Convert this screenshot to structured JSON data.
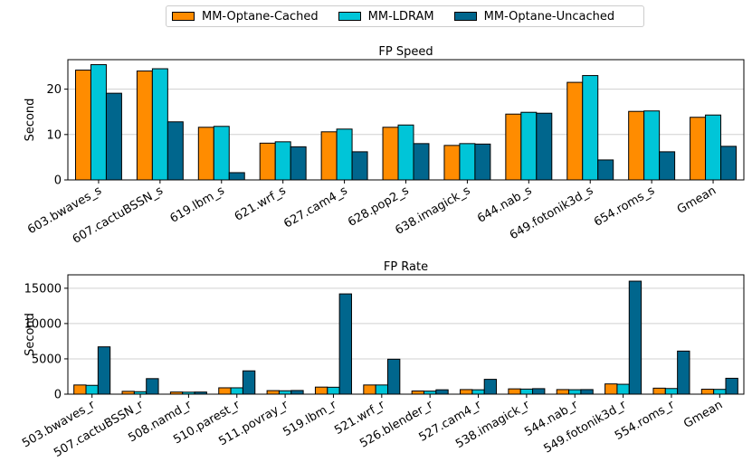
{
  "legend": [
    {
      "name": "MM-Optane-Cached",
      "color": "#ff8c00"
    },
    {
      "name": "MM-LDRAM",
      "color": "#00c5d8"
    },
    {
      "name": "MM-Optane-Uncached",
      "color": "#00668d"
    }
  ],
  "chart_data": [
    {
      "type": "bar",
      "title": "FP Speed",
      "xlabel": "",
      "ylabel": "Second",
      "ylim": [
        0,
        26.5
      ],
      "yticks": [
        0,
        10,
        20
      ],
      "grid": "horizontal",
      "categories": [
        "603.bwaves_s",
        "607.cactuBSSN_s",
        "619.lbm_s",
        "621.wrf_s",
        "627.cam4_s",
        "628.pop2_s",
        "638.imagick_s",
        "644.nab_s",
        "649.fotonik3d_s",
        "654.roms_s",
        "Gmean"
      ],
      "series": [
        {
          "name": "MM-Optane-Cached",
          "values": [
            24.2,
            24.0,
            11.6,
            8.1,
            10.6,
            11.6,
            7.6,
            14.5,
            21.5,
            15.1,
            13.8
          ]
        },
        {
          "name": "MM-LDRAM",
          "values": [
            25.4,
            24.5,
            11.8,
            8.4,
            11.2,
            12.1,
            8.0,
            14.9,
            23.0,
            15.2,
            14.3
          ]
        },
        {
          "name": "MM-Optane-Uncached",
          "values": [
            19.1,
            12.8,
            1.6,
            7.3,
            6.2,
            8.0,
            7.9,
            14.7,
            4.4,
            6.2,
            7.4
          ]
        }
      ]
    },
    {
      "type": "bar",
      "title": "FP Rate",
      "xlabel": "",
      "ylabel": "Second",
      "ylim": [
        0,
        16900
      ],
      "yticks": [
        0,
        5000,
        10000,
        15000
      ],
      "grid": "horizontal",
      "categories": [
        "503.bwaves_r",
        "507.cactuBSSN_r",
        "508.namd_r",
        "510.parest_r",
        "511.povray_r",
        "519.lbm_r",
        "521.wrf_r",
        "526.blender_r",
        "527.cam4_r",
        "538.imagick_r",
        "544.nab_r",
        "549.fotonik3d_r",
        "554.roms_r",
        "Gmean"
      ],
      "series": [
        {
          "name": "MM-Optane-Cached",
          "values": [
            1300,
            400,
            300,
            900,
            500,
            1000,
            1300,
            450,
            650,
            750,
            650,
            1450,
            850,
            700
          ]
        },
        {
          "name": "MM-LDRAM",
          "values": [
            1250,
            350,
            280,
            900,
            480,
            980,
            1300,
            430,
            620,
            720,
            630,
            1400,
            800,
            680
          ]
        },
        {
          "name": "MM-Optane-Uncached",
          "values": [
            6700,
            2200,
            300,
            3300,
            520,
            14200,
            4950,
            620,
            2100,
            780,
            650,
            16000,
            6100,
            2250
          ]
        }
      ]
    }
  ]
}
